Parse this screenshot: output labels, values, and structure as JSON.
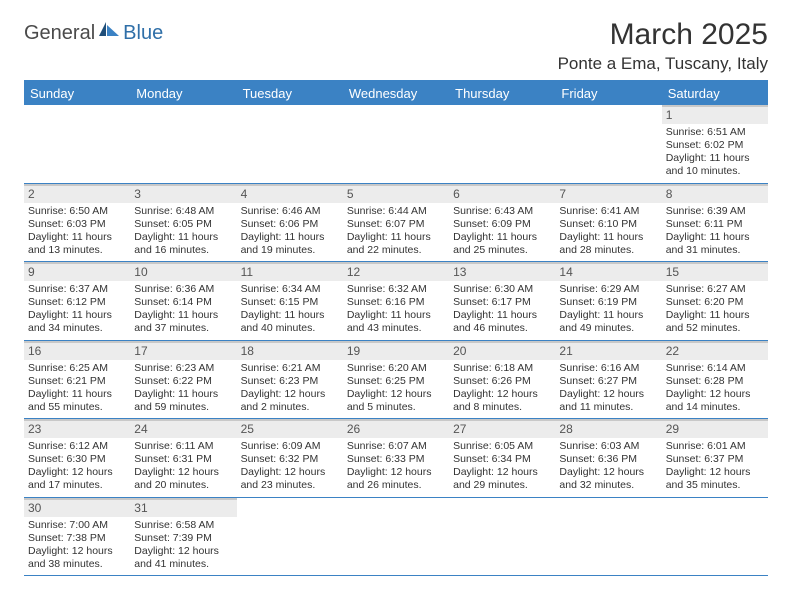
{
  "logo": {
    "general": "General",
    "blue": "Blue"
  },
  "title": "March 2025",
  "location": "Ponte a Ema, Tuscany, Italy",
  "colors": {
    "header_bg": "#3b82c4",
    "text": "#333333",
    "grid": "#c8c8c8",
    "daynum_bg": "#ececec"
  },
  "weekdays": [
    "Sunday",
    "Monday",
    "Tuesday",
    "Wednesday",
    "Thursday",
    "Friday",
    "Saturday"
  ],
  "weeks": [
    [
      {
        "empty": true
      },
      {
        "empty": true
      },
      {
        "empty": true
      },
      {
        "empty": true
      },
      {
        "empty": true
      },
      {
        "empty": true
      },
      {
        "num": "1",
        "sunrise": "Sunrise: 6:51 AM",
        "sunset": "Sunset: 6:02 PM",
        "day1": "Daylight: 11 hours",
        "day2": "and 10 minutes."
      }
    ],
    [
      {
        "num": "2",
        "sunrise": "Sunrise: 6:50 AM",
        "sunset": "Sunset: 6:03 PM",
        "day1": "Daylight: 11 hours",
        "day2": "and 13 minutes."
      },
      {
        "num": "3",
        "sunrise": "Sunrise: 6:48 AM",
        "sunset": "Sunset: 6:05 PM",
        "day1": "Daylight: 11 hours",
        "day2": "and 16 minutes."
      },
      {
        "num": "4",
        "sunrise": "Sunrise: 6:46 AM",
        "sunset": "Sunset: 6:06 PM",
        "day1": "Daylight: 11 hours",
        "day2": "and 19 minutes."
      },
      {
        "num": "5",
        "sunrise": "Sunrise: 6:44 AM",
        "sunset": "Sunset: 6:07 PM",
        "day1": "Daylight: 11 hours",
        "day2": "and 22 minutes."
      },
      {
        "num": "6",
        "sunrise": "Sunrise: 6:43 AM",
        "sunset": "Sunset: 6:09 PM",
        "day1": "Daylight: 11 hours",
        "day2": "and 25 minutes."
      },
      {
        "num": "7",
        "sunrise": "Sunrise: 6:41 AM",
        "sunset": "Sunset: 6:10 PM",
        "day1": "Daylight: 11 hours",
        "day2": "and 28 minutes."
      },
      {
        "num": "8",
        "sunrise": "Sunrise: 6:39 AM",
        "sunset": "Sunset: 6:11 PM",
        "day1": "Daylight: 11 hours",
        "day2": "and 31 minutes."
      }
    ],
    [
      {
        "num": "9",
        "sunrise": "Sunrise: 6:37 AM",
        "sunset": "Sunset: 6:12 PM",
        "day1": "Daylight: 11 hours",
        "day2": "and 34 minutes."
      },
      {
        "num": "10",
        "sunrise": "Sunrise: 6:36 AM",
        "sunset": "Sunset: 6:14 PM",
        "day1": "Daylight: 11 hours",
        "day2": "and 37 minutes."
      },
      {
        "num": "11",
        "sunrise": "Sunrise: 6:34 AM",
        "sunset": "Sunset: 6:15 PM",
        "day1": "Daylight: 11 hours",
        "day2": "and 40 minutes."
      },
      {
        "num": "12",
        "sunrise": "Sunrise: 6:32 AM",
        "sunset": "Sunset: 6:16 PM",
        "day1": "Daylight: 11 hours",
        "day2": "and 43 minutes."
      },
      {
        "num": "13",
        "sunrise": "Sunrise: 6:30 AM",
        "sunset": "Sunset: 6:17 PM",
        "day1": "Daylight: 11 hours",
        "day2": "and 46 minutes."
      },
      {
        "num": "14",
        "sunrise": "Sunrise: 6:29 AM",
        "sunset": "Sunset: 6:19 PM",
        "day1": "Daylight: 11 hours",
        "day2": "and 49 minutes."
      },
      {
        "num": "15",
        "sunrise": "Sunrise: 6:27 AM",
        "sunset": "Sunset: 6:20 PM",
        "day1": "Daylight: 11 hours",
        "day2": "and 52 minutes."
      }
    ],
    [
      {
        "num": "16",
        "sunrise": "Sunrise: 6:25 AM",
        "sunset": "Sunset: 6:21 PM",
        "day1": "Daylight: 11 hours",
        "day2": "and 55 minutes."
      },
      {
        "num": "17",
        "sunrise": "Sunrise: 6:23 AM",
        "sunset": "Sunset: 6:22 PM",
        "day1": "Daylight: 11 hours",
        "day2": "and 59 minutes."
      },
      {
        "num": "18",
        "sunrise": "Sunrise: 6:21 AM",
        "sunset": "Sunset: 6:23 PM",
        "day1": "Daylight: 12 hours",
        "day2": "and 2 minutes."
      },
      {
        "num": "19",
        "sunrise": "Sunrise: 6:20 AM",
        "sunset": "Sunset: 6:25 PM",
        "day1": "Daylight: 12 hours",
        "day2": "and 5 minutes."
      },
      {
        "num": "20",
        "sunrise": "Sunrise: 6:18 AM",
        "sunset": "Sunset: 6:26 PM",
        "day1": "Daylight: 12 hours",
        "day2": "and 8 minutes."
      },
      {
        "num": "21",
        "sunrise": "Sunrise: 6:16 AM",
        "sunset": "Sunset: 6:27 PM",
        "day1": "Daylight: 12 hours",
        "day2": "and 11 minutes."
      },
      {
        "num": "22",
        "sunrise": "Sunrise: 6:14 AM",
        "sunset": "Sunset: 6:28 PM",
        "day1": "Daylight: 12 hours",
        "day2": "and 14 minutes."
      }
    ],
    [
      {
        "num": "23",
        "sunrise": "Sunrise: 6:12 AM",
        "sunset": "Sunset: 6:30 PM",
        "day1": "Daylight: 12 hours",
        "day2": "and 17 minutes."
      },
      {
        "num": "24",
        "sunrise": "Sunrise: 6:11 AM",
        "sunset": "Sunset: 6:31 PM",
        "day1": "Daylight: 12 hours",
        "day2": "and 20 minutes."
      },
      {
        "num": "25",
        "sunrise": "Sunrise: 6:09 AM",
        "sunset": "Sunset: 6:32 PM",
        "day1": "Daylight: 12 hours",
        "day2": "and 23 minutes."
      },
      {
        "num": "26",
        "sunrise": "Sunrise: 6:07 AM",
        "sunset": "Sunset: 6:33 PM",
        "day1": "Daylight: 12 hours",
        "day2": "and 26 minutes."
      },
      {
        "num": "27",
        "sunrise": "Sunrise: 6:05 AM",
        "sunset": "Sunset: 6:34 PM",
        "day1": "Daylight: 12 hours",
        "day2": "and 29 minutes."
      },
      {
        "num": "28",
        "sunrise": "Sunrise: 6:03 AM",
        "sunset": "Sunset: 6:36 PM",
        "day1": "Daylight: 12 hours",
        "day2": "and 32 minutes."
      },
      {
        "num": "29",
        "sunrise": "Sunrise: 6:01 AM",
        "sunset": "Sunset: 6:37 PM",
        "day1": "Daylight: 12 hours",
        "day2": "and 35 minutes."
      }
    ],
    [
      {
        "num": "30",
        "sunrise": "Sunrise: 7:00 AM",
        "sunset": "Sunset: 7:38 PM",
        "day1": "Daylight: 12 hours",
        "day2": "and 38 minutes."
      },
      {
        "num": "31",
        "sunrise": "Sunrise: 6:58 AM",
        "sunset": "Sunset: 7:39 PM",
        "day1": "Daylight: 12 hours",
        "day2": "and 41 minutes."
      },
      {
        "empty": true
      },
      {
        "empty": true
      },
      {
        "empty": true
      },
      {
        "empty": true
      },
      {
        "empty": true
      }
    ]
  ]
}
